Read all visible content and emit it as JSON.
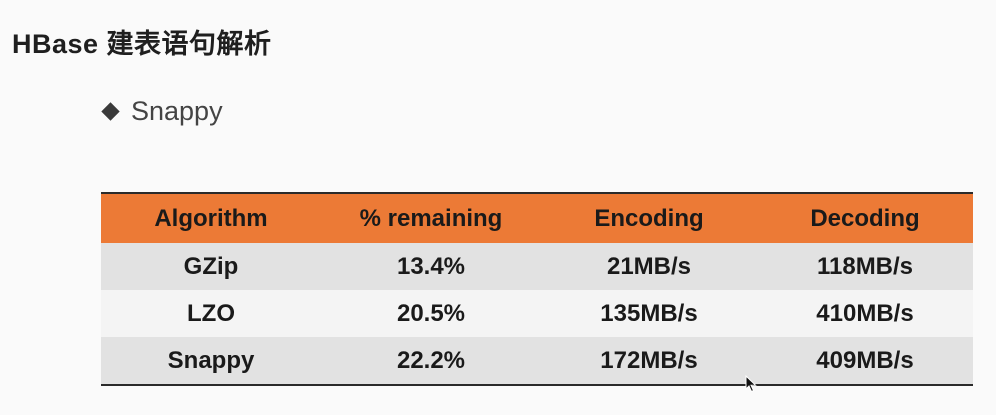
{
  "slide": {
    "title": "HBase 建表语句解析",
    "bullet": "Snappy"
  },
  "table": {
    "headers": [
      "Algorithm",
      "% remaining",
      "Encoding",
      "Decoding"
    ],
    "rows": [
      [
        "GZip",
        "13.4%",
        "21MB/s",
        "118MB/s"
      ],
      [
        "LZO",
        "20.5%",
        "135MB/s",
        "410MB/s"
      ],
      [
        "Snappy",
        "22.2%",
        "172MB/s",
        "409MB/s"
      ]
    ],
    "header_color": "#ec7a36",
    "shaded_row_color": "#e2e2e2"
  },
  "icons": {
    "bullet": "diamond-bullet-icon",
    "pointer": "mouse-pointer-icon"
  }
}
